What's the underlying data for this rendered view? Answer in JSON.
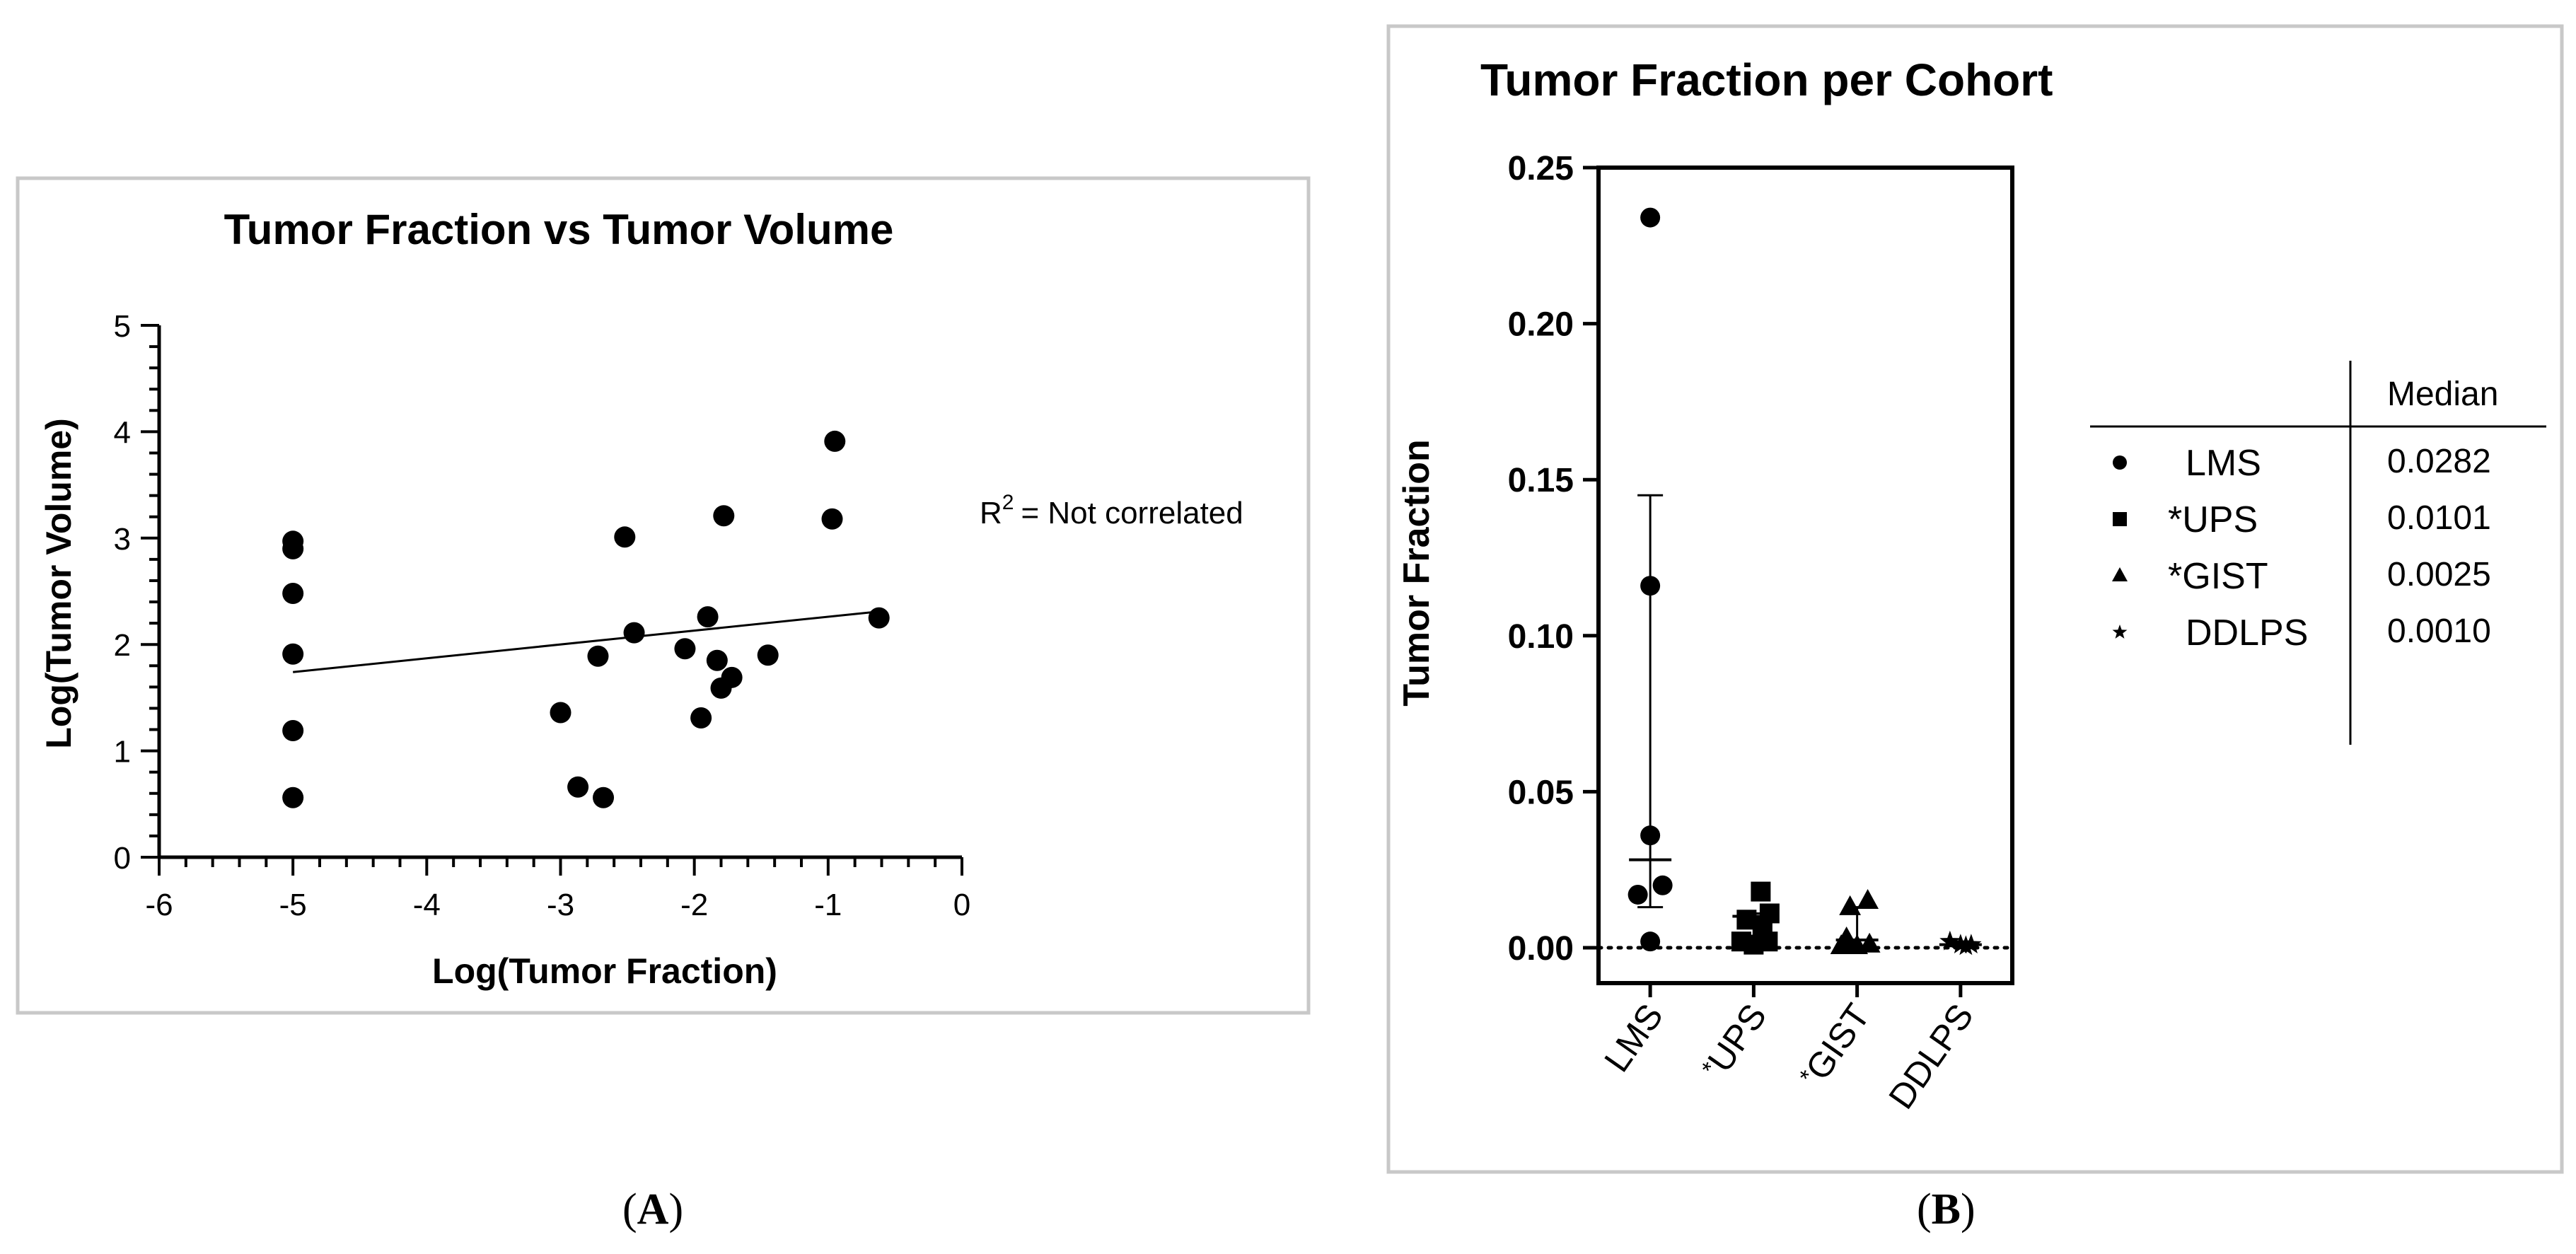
{
  "panelA": {
    "caption_open": "(",
    "caption_label": "A",
    "caption_close": ")",
    "chart_data": {
      "type": "scatter",
      "title": "Tumor Fraction vs Tumor Volume",
      "xlabel": "Log(Tumor Fraction)",
      "ylabel": "Log(Tumor Volume)",
      "xlim": [
        -6,
        0
      ],
      "ylim": [
        0,
        5
      ],
      "xticks": [
        "-6",
        "-4",
        "-2",
        "0"
      ],
      "xtick_values": [
        -6,
        -5,
        -4,
        -3,
        -2,
        -1,
        0
      ],
      "xtick_labels": [
        "-6",
        "-5",
        "-4",
        "-3",
        "-2",
        "-1",
        "0"
      ],
      "ytick_values": [
        0,
        1,
        2,
        3,
        4,
        5
      ],
      "ytick_labels": [
        "0",
        "1",
        "2",
        "3",
        "4",
        "5"
      ],
      "points": [
        {
          "x": -5.0,
          "y": 2.97
        },
        {
          "x": -5.0,
          "y": 2.9
        },
        {
          "x": -5.0,
          "y": 2.48
        },
        {
          "x": -5.0,
          "y": 1.91
        },
        {
          "x": -5.0,
          "y": 1.19
        },
        {
          "x": -5.0,
          "y": 0.56
        },
        {
          "x": -3.0,
          "y": 1.36
        },
        {
          "x": -2.87,
          "y": 0.66
        },
        {
          "x": -2.72,
          "y": 1.89
        },
        {
          "x": -2.68,
          "y": 0.56
        },
        {
          "x": -2.52,
          "y": 3.01
        },
        {
          "x": -2.45,
          "y": 2.11
        },
        {
          "x": -2.07,
          "y": 1.96
        },
        {
          "x": -1.95,
          "y": 1.31
        },
        {
          "x": -1.9,
          "y": 2.26
        },
        {
          "x": -1.83,
          "y": 1.85
        },
        {
          "x": -1.8,
          "y": 1.59
        },
        {
          "x": -1.78,
          "y": 3.21
        },
        {
          "x": -1.72,
          "y": 1.69
        },
        {
          "x": -1.45,
          "y": 1.9
        },
        {
          "x": -0.97,
          "y": 3.18
        },
        {
          "x": -0.95,
          "y": 3.91
        },
        {
          "x": -0.62,
          "y": 2.25
        }
      ],
      "regression_line": {
        "x1": -5.0,
        "y1": 1.74,
        "x2": -0.62,
        "y2": 2.31
      },
      "annotation_r": "R",
      "annotation_sup": "2",
      "annotation_text": "= Not correlated"
    }
  },
  "panelB": {
    "caption_open": "(",
    "caption_label": "B",
    "caption_close": ")",
    "chart_data": {
      "type": "scatter",
      "title": "Tumor Fraction per Cohort",
      "ylabel": "Tumor Fraction",
      "ylim": [
        0,
        0.25
      ],
      "ytick_values": [
        0,
        0.05,
        0.1,
        0.15,
        0.2,
        0.25
      ],
      "ytick_labels": [
        "0.00",
        "0.05",
        "0.10",
        "0.15",
        "0.20",
        "0.25"
      ],
      "categories": [
        "LMS",
        "UPS",
        "GIST",
        "DDLPS"
      ],
      "category_prefix": [
        "",
        "*",
        "*",
        ""
      ],
      "reference_line": 0,
      "series": [
        {
          "name": "LMS",
          "marker": "circle",
          "median": 0.0282,
          "error_low": 0.013,
          "error_high": 0.145,
          "points": [
            {
              "dx": 0,
              "y": 0.234
            },
            {
              "dx": 0,
              "y": 0.116
            },
            {
              "dx": 0,
              "y": 0.036
            },
            {
              "dx": 0.35,
              "y": 0.02
            },
            {
              "dx": -0.35,
              "y": 0.017
            },
            {
              "dx": 0,
              "y": 0.002
            }
          ]
        },
        {
          "name": "UPS",
          "marker": "square",
          "median": 0.0101,
          "error_low": 0.002,
          "error_high": 0.011,
          "points": [
            {
              "dx": 0.2,
              "y": 0.018
            },
            {
              "dx": 0.45,
              "y": 0.011
            },
            {
              "dx": -0.2,
              "y": 0.009
            },
            {
              "dx": 0.25,
              "y": 0.007
            },
            {
              "dx": -0.35,
              "y": 0.002
            },
            {
              "dx": 0.4,
              "y": 0.002
            },
            {
              "dx": 0,
              "y": 0.001
            }
          ]
        },
        {
          "name": "GIST",
          "marker": "triangle",
          "median": 0.0025,
          "error_low": 0.0005,
          "error_high": 0.013,
          "points": [
            {
              "dx": -0.2,
              "y": 0.013
            },
            {
              "dx": 0.3,
              "y": 0.015
            },
            {
              "dx": -0.3,
              "y": 0.003
            },
            {
              "dx": 0.35,
              "y": 0.001
            },
            {
              "dx": 0,
              "y": 0.0005
            },
            {
              "dx": -0.45,
              "y": 0.0005
            }
          ]
        },
        {
          "name": "DDLPS",
          "marker": "star",
          "median": 0.001,
          "error_low": 0.0005,
          "error_high": 0.002,
          "points": [
            {
              "dx": -0.3,
              "y": 0.002
            },
            {
              "dx": 0,
              "y": 0.001
            },
            {
              "dx": 0.3,
              "y": 0.001
            },
            {
              "dx": 0.15,
              "y": 0.0005
            }
          ]
        }
      ],
      "legend": {
        "header": "Median",
        "rows": [
          {
            "label": "LMS",
            "value": "0.0282"
          },
          {
            "label": "*UPS",
            "value": "0.0101"
          },
          {
            "label": "*GIST",
            "value": "0.0025"
          },
          {
            "label": "DDLPS",
            "value": "0.0010"
          }
        ]
      }
    }
  }
}
